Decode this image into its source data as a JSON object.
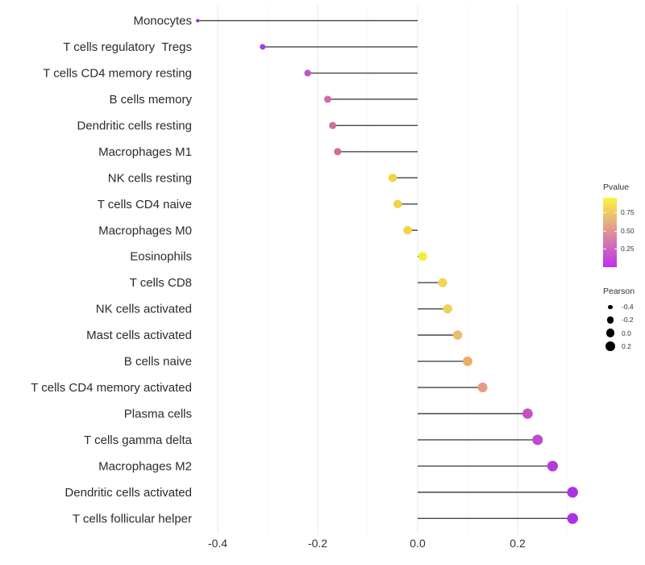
{
  "chart_data": {
    "type": "scatter",
    "variant": "lollipop",
    "title": "",
    "xlabel": "",
    "ylabel": "",
    "xlim": [
      -0.485,
      0.347
    ],
    "grid": true,
    "x_ticks_major": {
      "values": [
        -0.4,
        -0.2,
        0.0,
        0.2
      ],
      "labels": [
        "-0.4",
        "-0.2",
        "0.0",
        "0.2"
      ]
    },
    "x_ticks_minor": [
      -0.3,
      -0.1,
      0.1,
      0.3
    ],
    "points": [
      {
        "label": "Monocytes",
        "pearson": -0.44,
        "pvalue": 0.03,
        "color": "#9C21D2"
      },
      {
        "label": "T cells regulatory  Tregs",
        "pearson": -0.31,
        "pvalue": 0.08,
        "color": "#A63CE1"
      },
      {
        "label": "T cells CD4 memory resting",
        "pearson": -0.22,
        "pvalue": 0.2,
        "color": "#BF54C6"
      },
      {
        "label": "B cells memory",
        "pearson": -0.18,
        "pvalue": 0.33,
        "color": "#CF6FA5"
      },
      {
        "label": "Dendritic cells resting",
        "pearson": -0.17,
        "pvalue": 0.35,
        "color": "#CF6F9C"
      },
      {
        "label": "Macrophages M1",
        "pearson": -0.16,
        "pvalue": 0.36,
        "color": "#CF6F96"
      },
      {
        "label": "NK cells resting",
        "pearson": -0.05,
        "pvalue": 0.8,
        "color": "#EFD245"
      },
      {
        "label": "T cells CD4 naive",
        "pearson": -0.04,
        "pvalue": 0.8,
        "color": "#F0D245"
      },
      {
        "label": "Macrophages M0",
        "pearson": -0.02,
        "pvalue": 0.82,
        "color": "#F0D643"
      },
      {
        "label": "Eosinophils",
        "pearson": 0.01,
        "pvalue": 0.92,
        "color": "#F6EC3C"
      },
      {
        "label": "T cells CD8",
        "pearson": 0.05,
        "pvalue": 0.82,
        "color": "#F0D557"
      },
      {
        "label": "NK cells activated",
        "pearson": 0.06,
        "pvalue": 0.8,
        "color": "#F0CF5A"
      },
      {
        "label": "Mast cells activated",
        "pearson": 0.08,
        "pvalue": 0.7,
        "color": "#EDBD6E"
      },
      {
        "label": "B cells naive",
        "pearson": 0.1,
        "pvalue": 0.63,
        "color": "#ECAE64"
      },
      {
        "label": "T cells CD4 memory activated",
        "pearson": 0.13,
        "pvalue": 0.54,
        "color": "#E69A85"
      },
      {
        "label": "Plasma cells",
        "pearson": 0.22,
        "pvalue": 0.19,
        "color": "#C84FC6"
      },
      {
        "label": "T cells gamma delta",
        "pearson": 0.24,
        "pvalue": 0.17,
        "color": "#BE4AD0"
      },
      {
        "label": "Macrophages M2",
        "pearson": 0.27,
        "pvalue": 0.14,
        "color": "#B53BD8"
      },
      {
        "label": "Dendritic cells activated",
        "pearson": 0.31,
        "pvalue": 0.11,
        "color": "#AC33E4"
      },
      {
        "label": "T cells follicular helper",
        "pearson": 0.31,
        "pvalue": 0.1,
        "color": "#AC33E4"
      }
    ],
    "legend": {
      "pvalue": {
        "title": "Pvalue",
        "ticks": [
          {
            "label": "0.75",
            "value": 0.75
          },
          {
            "label": "0.50",
            "value": 0.5
          },
          {
            "label": "0.25",
            "value": 0.25
          }
        ],
        "scale_top": 0.95,
        "scale_bottom": 0.0,
        "gradient_stops": [
          "#FAF53E",
          "#EDC46C",
          "#DC9297",
          "#CE61C3",
          "#BF2FF0"
        ]
      },
      "pearson": {
        "title": "Pearson",
        "entries": [
          {
            "label": "-0.4",
            "value": -0.4
          },
          {
            "label": "-0.2",
            "value": -0.2
          },
          {
            "label": "0.0",
            "value": 0.0
          },
          {
            "label": "0.2",
            "value": 0.2
          }
        ],
        "dot_color": "#000000"
      }
    },
    "colors": {
      "background": "#FFFFFF",
      "stem": "#454545",
      "grid_major": "#E9E9E9",
      "grid_minor": "#F4F4F4",
      "axis_text": "#333333",
      "category_text": "#2B2B2B"
    }
  }
}
